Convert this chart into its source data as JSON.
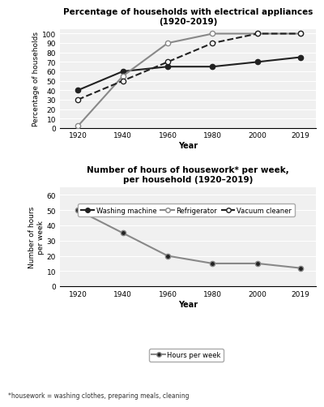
{
  "years": [
    1920,
    1940,
    1960,
    1980,
    2000,
    2019
  ],
  "washing_machine": [
    40,
    60,
    65,
    65,
    70,
    75
  ],
  "refrigerator": [
    2,
    55,
    90,
    100,
    100,
    100
  ],
  "vacuum_cleaner": [
    30,
    50,
    70,
    90,
    100,
    100
  ],
  "hours_per_week": [
    50,
    35,
    20,
    15,
    15,
    12
  ],
  "chart1_title": "Percentage of households with electrical appliances\n(1920–2019)",
  "chart1_ylabel": "Percentage of households",
  "chart1_xlabel": "Year",
  "chart1_ylim": [
    0,
    105
  ],
  "chart1_yticks": [
    0,
    10,
    20,
    30,
    40,
    50,
    60,
    70,
    80,
    90,
    100
  ],
  "chart2_title": "Number of hours of housework* per week,\nper household (1920–2019)",
  "chart2_ylabel": "Number of hours\nper week",
  "chart2_xlabel": "Year",
  "chart2_ylim": [
    0,
    65
  ],
  "chart2_yticks": [
    0,
    10,
    20,
    30,
    40,
    50,
    60
  ],
  "footnote": "*housework = washing clothes, preparing meals, cleaning",
  "dark_color": "#222222",
  "gray_color": "#888888",
  "bg_color": "#f0f0f0",
  "legend1_labels": [
    "Washing machine",
    "Refrigerator",
    "Vacuum cleaner"
  ],
  "legend2_label": "Hours per week"
}
